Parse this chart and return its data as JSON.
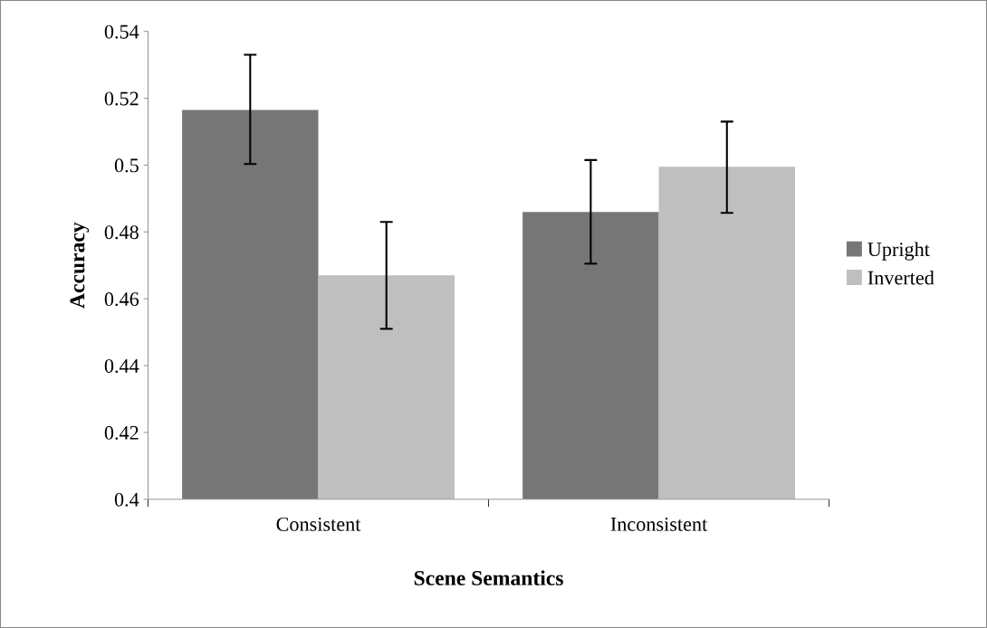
{
  "chart_data": {
    "type": "bar",
    "xlabel": "Scene Semantics",
    "ylabel": "Accuracy",
    "categories": [
      "Consistent",
      "Inconsistent"
    ],
    "series": [
      {
        "name": "Upright",
        "color": "#767676",
        "values": [
          0.5165,
          0.486
        ],
        "errors": [
          [
            0.5003,
            0.533
          ],
          [
            0.4705,
            0.5015
          ]
        ]
      },
      {
        "name": "Inverted",
        "color": "#bfbfbf",
        "values": [
          0.467,
          0.4995
        ],
        "errors": [
          [
            0.451,
            0.483
          ],
          [
            0.4857,
            0.513
          ]
        ]
      }
    ],
    "ylim": [
      0.4,
      0.54
    ],
    "yticks": [
      0.4,
      0.42,
      0.44,
      0.46,
      0.48,
      0.5,
      0.52,
      0.54
    ],
    "grid": false,
    "legend": "right"
  }
}
